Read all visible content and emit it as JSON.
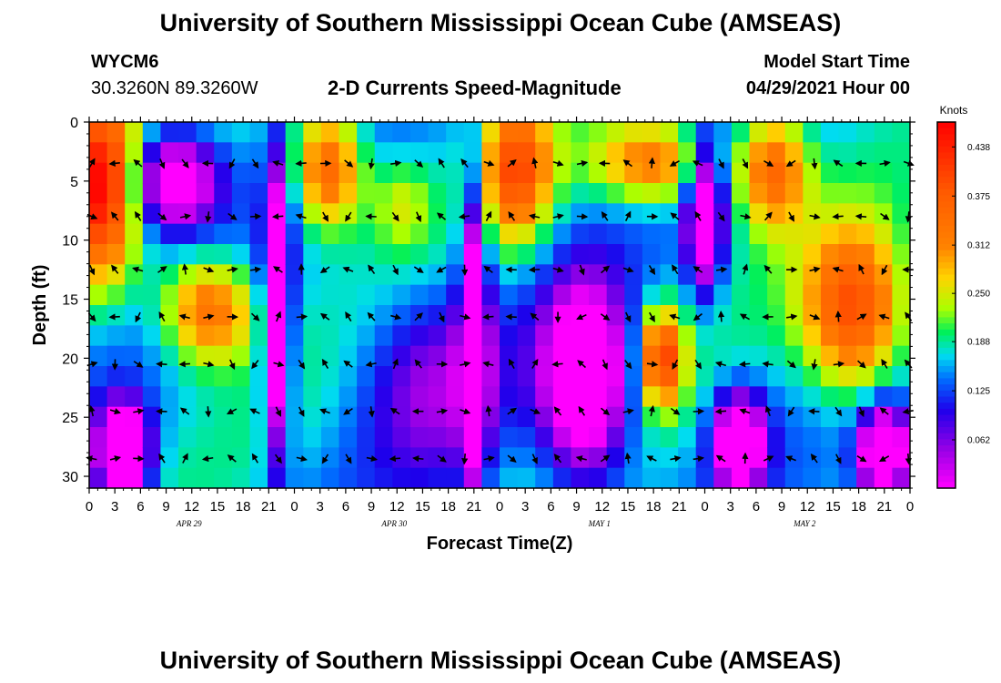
{
  "header": {
    "title": "University of Southern Mississippi Ocean Cube (AMSEAS)",
    "footer_title": "University of Southern Mississippi Ocean Cube (AMSEAS)",
    "station_id": "WYCM6",
    "station_coords": "30.3260N  89.3260W",
    "plot_title": "2-D Currents Speed-Magnitude",
    "model_start_label": "Model Start Time",
    "model_start_value": "04/29/2021 Hour 00"
  },
  "chart_data": {
    "type": "heatmap",
    "title": "2-D Currents Speed-Magnitude",
    "xlabel": "Forecast Time(Z)",
    "ylabel": "Depth (ft)",
    "x_tick_labels": [
      "0",
      "3",
      "6",
      "9",
      "12",
      "15",
      "18",
      "21",
      "0",
      "3",
      "6",
      "9",
      "12",
      "15",
      "18",
      "21",
      "0",
      "3",
      "6",
      "9",
      "12",
      "15",
      "18",
      "21",
      "0",
      "3",
      "6",
      "9",
      "12",
      "15",
      "18",
      "21",
      "0"
    ],
    "date_labels": [
      {
        "label": "APR 29",
        "hour": 12
      },
      {
        "label": "APR 30",
        "hour": 36
      },
      {
        "label": "MAY 1",
        "hour": 60
      },
      {
        "label": "MAY 2",
        "hour": 84
      }
    ],
    "xlim": [
      0,
      96
    ],
    "ylim": [
      0,
      31
    ],
    "y_ticks": [
      0,
      5,
      10,
      15,
      20,
      25,
      30
    ],
    "colorbar": {
      "unit": "Knots",
      "ticks": [
        "0.438",
        "0.375",
        "0.312",
        "0.250",
        "0.188",
        "0.125",
        "0.062"
      ],
      "range": [
        0,
        0.47
      ]
    },
    "cells_x": 46,
    "cells_y": 18,
    "hotspots": [
      {
        "t": 1.5,
        "d": 5,
        "st": 4,
        "sd": 8,
        "v": 0.45
      },
      {
        "t": 14,
        "d": 16,
        "st": 5.5,
        "sd": 4.5,
        "v": 0.36
      },
      {
        "t": 28,
        "d": 4,
        "st": 4,
        "sd": 5,
        "v": 0.38
      },
      {
        "t": 36.5,
        "d": 7,
        "st": 3.5,
        "sd": 4,
        "v": 0.24
      },
      {
        "t": 50,
        "d": 4,
        "st": 4,
        "sd": 6,
        "v": 0.38
      },
      {
        "t": 66,
        "d": 3.5,
        "st": 7,
        "sd": 3.5,
        "v": 0.34
      },
      {
        "t": 80,
        "d": 4,
        "st": 4,
        "sd": 5,
        "v": 0.36
      },
      {
        "t": 67,
        "d": 20,
        "st": 2.5,
        "sd": 4,
        "v": 0.4
      },
      {
        "t": 89.5,
        "d": 16,
        "st": 6,
        "sd": 7,
        "v": 0.4
      },
      {
        "t": 53,
        "d": 14,
        "st": 6,
        "sd": 6,
        "v": 0.16
      },
      {
        "t": 40,
        "d": 22,
        "st": 8,
        "sd": 8,
        "v": 0.06
      },
      {
        "t": 4,
        "d": 28,
        "st": 3,
        "sd": 4,
        "v": -0.14
      },
      {
        "t": 22,
        "d": 16,
        "st": 1.5,
        "sd": 12,
        "v": -0.12
      },
      {
        "t": 45,
        "d": 18,
        "st": 1.5,
        "sd": 12,
        "v": -0.12
      },
      {
        "t": 58,
        "d": 22,
        "st": 5,
        "sd": 8,
        "v": -0.12
      },
      {
        "t": 72,
        "d": 8,
        "st": 2,
        "sd": 6,
        "v": -0.1
      },
      {
        "t": 93,
        "d": 28,
        "st": 3,
        "sd": 4,
        "v": -0.12
      },
      {
        "t": 76,
        "d": 27,
        "st": 3,
        "sd": 4,
        "v": -0.1
      },
      {
        "t": 10,
        "d": 5,
        "st": 5,
        "sd": 4,
        "v": -0.08
      }
    ],
    "arrow_depths": [
      3.5,
      8,
      12.5,
      16.5,
      20.5,
      24.5,
      28.5
    ],
    "arrow_hours": [
      0,
      2.7,
      5.4,
      8.2,
      10.9,
      13.6,
      16.4,
      19.1,
      21.8,
      24.5,
      27.3,
      30,
      32.7,
      35.5,
      38.2,
      40.9,
      43.6,
      46.4,
      49.1,
      51.8,
      54.5,
      57.3,
      60,
      62.7,
      65.5,
      68.2,
      70.9,
      73.6,
      76.4,
      79.1,
      81.8,
      84.5,
      87.3,
      90,
      92.7,
      95.5
    ],
    "arrow_directions_deg": "computed per cell (angles, unit: degrees)"
  }
}
